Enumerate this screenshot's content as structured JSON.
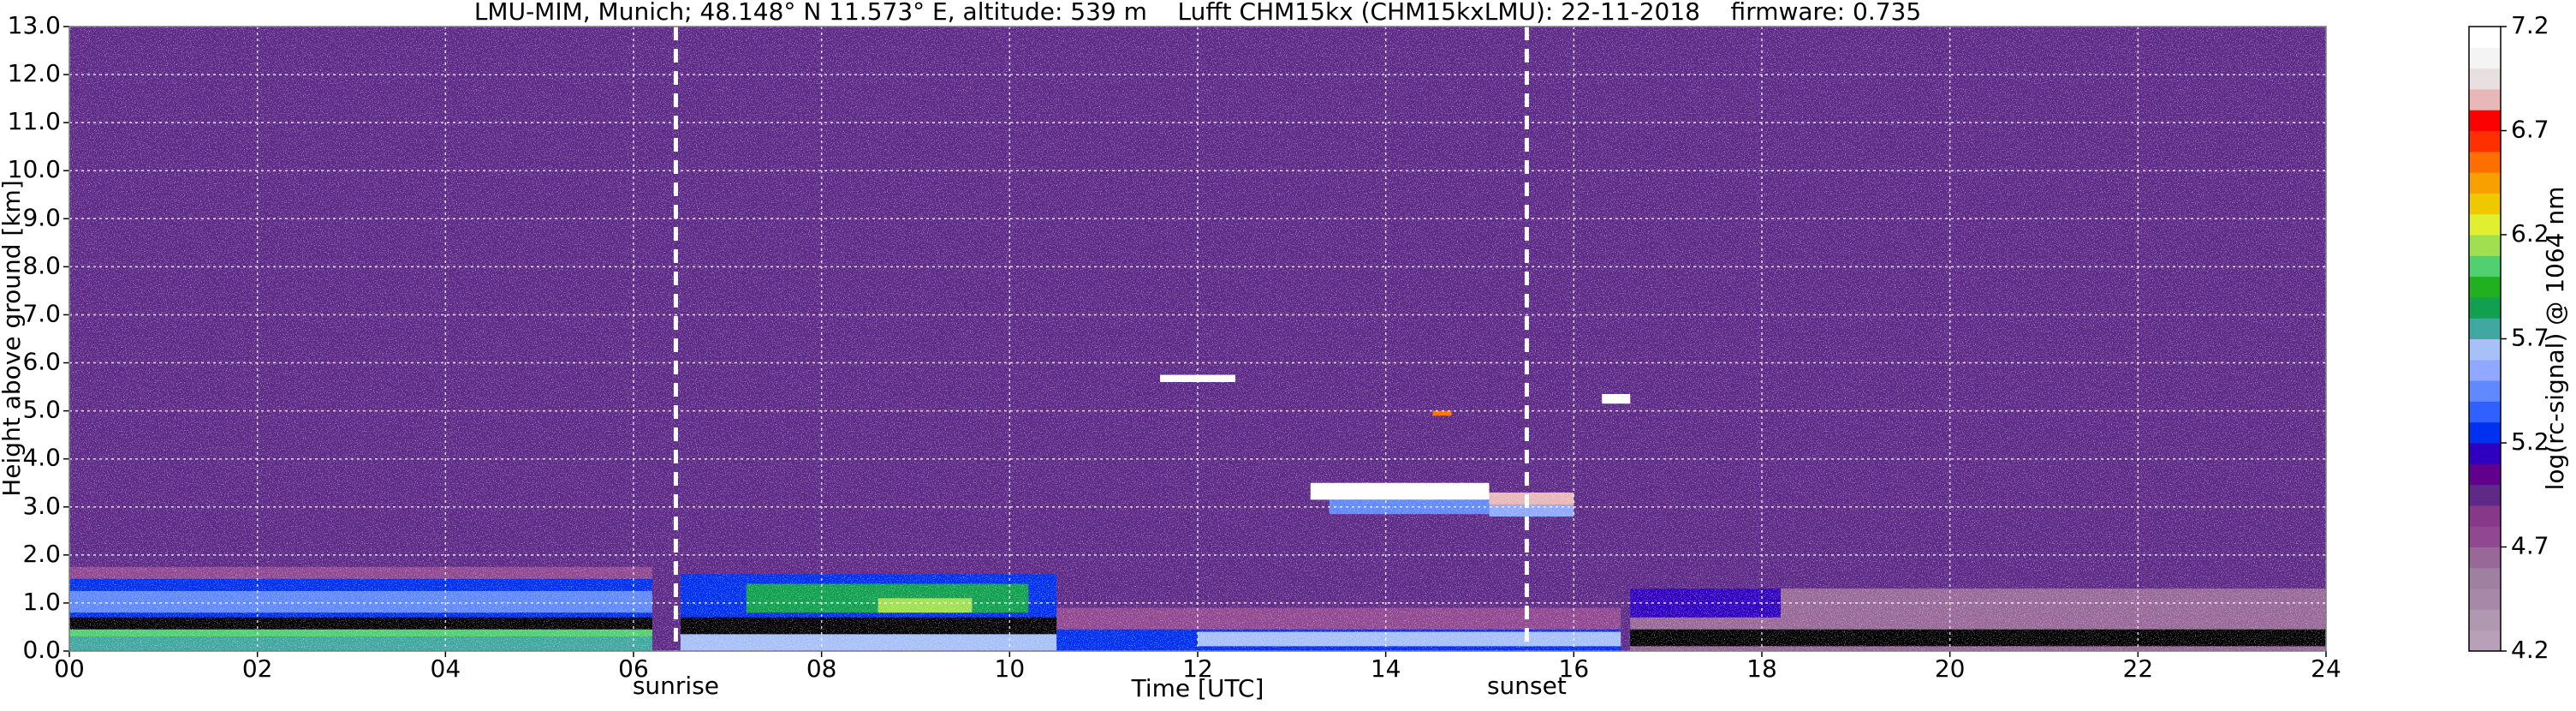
{
  "chart_data": {
    "type": "heatmap",
    "title": "LMU-MIM, Munich; 48.148° N 11.573° E, altitude: 539 m    Lufft CHM15kx (CHM15kxLMU): 22-11-2018    firmware: 0.735",
    "xlabel": "Time [UTC]",
    "ylabel": "Height above ground [km]",
    "colorbar_label": "log(rc-signal) @ 1064 nm",
    "xlim": [
      0,
      24
    ],
    "ylim": [
      0,
      13
    ],
    "xticks": [
      {
        "value": 0,
        "label": "00"
      },
      {
        "value": 2,
        "label": "02"
      },
      {
        "value": 4,
        "label": "04"
      },
      {
        "value": 6,
        "label": "06"
      },
      {
        "value": 8,
        "label": "08"
      },
      {
        "value": 10,
        "label": "10"
      },
      {
        "value": 12,
        "label": "12"
      },
      {
        "value": 14,
        "label": "14"
      },
      {
        "value": 16,
        "label": "16"
      },
      {
        "value": 18,
        "label": "18"
      },
      {
        "value": 20,
        "label": "20"
      },
      {
        "value": 22,
        "label": "22"
      },
      {
        "value": 24,
        "label": "24"
      }
    ],
    "yticks": [
      {
        "value": 0,
        "label": "0.0"
      },
      {
        "value": 1,
        "label": "1.0"
      },
      {
        "value": 2,
        "label": "2.0"
      },
      {
        "value": 3,
        "label": "3.0"
      },
      {
        "value": 4,
        "label": "4.0"
      },
      {
        "value": 5,
        "label": "5.0"
      },
      {
        "value": 6,
        "label": "6.0"
      },
      {
        "value": 7,
        "label": "7.0"
      },
      {
        "value": 8,
        "label": "8.0"
      },
      {
        "value": 9,
        "label": "9.0"
      },
      {
        "value": 10,
        "label": "10.0"
      },
      {
        "value": 11,
        "label": "11.0"
      },
      {
        "value": 12,
        "label": "12.0"
      },
      {
        "value": 13,
        "label": "13.0"
      }
    ],
    "grid": true,
    "clim": [
      4.2,
      7.2
    ],
    "cticks": [
      4.2,
      4.7,
      5.2,
      5.7,
      6.2,
      6.7,
      7.2
    ],
    "colorscale": [
      "#b8a0b8",
      "#b098b0",
      "#a888a8",
      "#a080a0",
      "#986898",
      "#904890",
      "#883888",
      "#5e2a88",
      "#60008c",
      "#3000c0",
      "#0030f0",
      "#3060ff",
      "#6088ff",
      "#90a8ff",
      "#a8c0f8",
      "#40a8a0",
      "#10a050",
      "#20b020",
      "#50d070",
      "#a0e050",
      "#e0f030",
      "#f0c800",
      "#f8a000",
      "#ff7000",
      "#ff3000",
      "#ff0000",
      "#e8b8b8",
      "#e8e0e0",
      "#f4f4f4",
      "#ffffff"
    ],
    "under_color": "#000000",
    "regions": [
      {
        "x": [
          0,
          24
        ],
        "y": [
          0,
          13
        ],
        "value": 4.95
      },
      {
        "x": [
          0,
          6.2
        ],
        "y": [
          1.5,
          1.75
        ],
        "value": 4.75
      },
      {
        "x": [
          0,
          6.2
        ],
        "y": [
          0.7,
          1.5
        ],
        "value": 5.25
      },
      {
        "x": [
          0,
          6.2
        ],
        "y": [
          0.8,
          1.25
        ],
        "value": 5.45
      },
      {
        "x": [
          0,
          6.2
        ],
        "y": [
          0.45,
          0.7
        ],
        "value": 4.0
      },
      {
        "x": [
          0,
          6.2
        ],
        "y": [
          0.3,
          0.45
        ],
        "value": 6.0
      },
      {
        "x": [
          0,
          6.2
        ],
        "y": [
          0,
          0.3
        ],
        "value": 5.75
      },
      {
        "x": [
          6.5,
          10.5
        ],
        "y": [
          0.7,
          1.6
        ],
        "value": 5.25
      },
      {
        "x": [
          7.2,
          10.2
        ],
        "y": [
          0.8,
          1.4
        ],
        "value": 5.85
      },
      {
        "x": [
          8.6,
          9.6
        ],
        "y": [
          0.8,
          1.1
        ],
        "value": 6.15
      },
      {
        "x": [
          6.5,
          10.5
        ],
        "y": [
          0.35,
          0.7
        ],
        "value": 4.0
      },
      {
        "x": [
          6.5,
          10.5
        ],
        "y": [
          0,
          0.35
        ],
        "value": 5.65
      },
      {
        "x": [
          10.5,
          16.5
        ],
        "y": [
          0.3,
          0.9
        ],
        "value": 4.75
      },
      {
        "x": [
          10.5,
          16.5
        ],
        "y": [
          0,
          0.45
        ],
        "value": 5.25
      },
      {
        "x": [
          12,
          16.5
        ],
        "y": [
          0.1,
          0.4
        ],
        "value": 5.65
      },
      {
        "x": [
          13.2,
          15.1
        ],
        "y": [
          3.15,
          3.5
        ],
        "value": 7.15
      },
      {
        "x": [
          13.4,
          15.2
        ],
        "y": [
          2.85,
          3.15
        ],
        "value": 5.45
      },
      {
        "x": [
          15.1,
          16.0
        ],
        "y": [
          3.05,
          3.3
        ],
        "value": 6.85
      },
      {
        "x": [
          15.1,
          16.0
        ],
        "y": [
          2.8,
          3.05
        ],
        "value": 5.55
      },
      {
        "x": [
          11.6,
          12.4
        ],
        "y": [
          5.6,
          5.75
        ],
        "value": 7.15
      },
      {
        "x": [
          16.3,
          16.6
        ],
        "y": [
          5.15,
          5.35
        ],
        "value": 7.15
      },
      {
        "x": [
          14.5,
          14.7
        ],
        "y": [
          4.9,
          5.0
        ],
        "value": 6.5
      },
      {
        "x": [
          16.6,
          24
        ],
        "y": [
          0.45,
          1.3
        ],
        "value": 4.65
      },
      {
        "x": [
          16.6,
          18.2
        ],
        "y": [
          0.7,
          1.3
        ],
        "value": 5.15
      },
      {
        "x": [
          16.6,
          24
        ],
        "y": [
          0.1,
          0.45
        ],
        "value": 4.0
      },
      {
        "x": [
          16.6,
          24
        ],
        "y": [
          0,
          0.1
        ],
        "value": 4.65
      }
    ],
    "annotations": [
      {
        "text": "sunrise",
        "x": 6.45
      },
      {
        "text": "sunset",
        "x": 15.5
      }
    ]
  }
}
